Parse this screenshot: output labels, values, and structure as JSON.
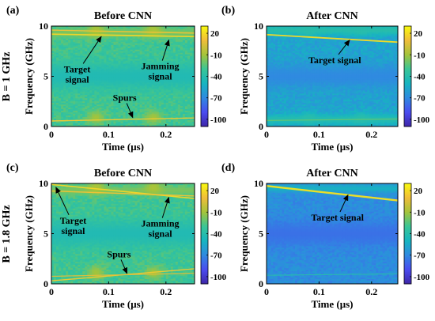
{
  "figure": {
    "row_labels": [
      "B = 1 GHz",
      "B = 1.8 GHz"
    ]
  },
  "colormap": {
    "name": "parula",
    "stops": [
      "#3e26a8",
      "#4a4cf0",
      "#2f8ae0",
      "#17b5c0",
      "#3ac596",
      "#a4c43b",
      "#f0bd3a",
      "#f9fb0e"
    ]
  },
  "chart_data": [
    {
      "type": "heatmap",
      "panel_label": "(a)",
      "title": "Before CNN",
      "xlabel": "Time (μs)",
      "ylabel": "Frequency (GHz)",
      "xlim": [
        0,
        0.25
      ],
      "ylim": [
        0,
        10
      ],
      "xticks": [
        {
          "v": 0,
          "t": "0"
        },
        {
          "v": 0.1,
          "t": "0.1"
        },
        {
          "v": 0.2,
          "t": "0.2"
        }
      ],
      "yticks": [
        {
          "v": 0,
          "t": "0"
        },
        {
          "v": 5,
          "t": "5"
        },
        {
          "v": 10,
          "t": "10"
        }
      ],
      "clim": [
        -110,
        30
      ],
      "colorbar_ticks": [
        {
          "v": 20,
          "t": "20"
        },
        {
          "v": -10,
          "t": "-10"
        },
        {
          "v": -40,
          "t": "-40"
        },
        {
          "v": -70,
          "t": "-70"
        },
        {
          "v": -100,
          "t": "-100"
        }
      ],
      "background_level": -30,
      "noise": 7,
      "bands": [
        {
          "f": 5,
          "w": 1.3,
          "level": -44
        },
        {
          "f": 9.3,
          "w": 0.5,
          "level": -18
        }
      ],
      "jamming_blobs": [
        {
          "t": 0.078,
          "f": 9.6,
          "dt": 0.016,
          "df": 0.7,
          "level": -8
        },
        {
          "t": 0.178,
          "f": 9.6,
          "dt": 0.016,
          "df": 0.7,
          "level": -8
        },
        {
          "t": 0.078,
          "f": 0.9,
          "dt": 0.016,
          "df": 0.7,
          "level": -10
        },
        {
          "t": 0.178,
          "f": 0.9,
          "dt": 0.016,
          "df": 0.7,
          "level": -10
        }
      ],
      "signals": [
        {
          "name": "Target signal",
          "t0": 0,
          "f0": 9.2,
          "t1": 0.25,
          "f1": 8.95,
          "level": 18,
          "width": 0.08
        },
        {
          "name": "Jamming signal",
          "t0": 0,
          "f0": 9.6,
          "t1": 0.25,
          "f1": 9.3,
          "level": 12,
          "width": 0.07
        },
        {
          "name": "Spurs",
          "t0": 0,
          "f0": 0.55,
          "t1": 0.25,
          "f1": 0.85,
          "level": 14,
          "width": 0.07
        }
      ],
      "annotations": [
        {
          "text": [
            "Target",
            "signal"
          ],
          "x": 0.045,
          "y": 5.4,
          "arrow_to": [
            0.087,
            8.95
          ]
        },
        {
          "text": [
            "Jamming",
            "signal"
          ],
          "x": 0.19,
          "y": 5.7,
          "arrow_to": [
            0.205,
            8.6
          ]
        },
        {
          "text": [
            "Spurs"
          ],
          "x": 0.128,
          "y": 2.55,
          "arrow_to": [
            0.142,
            0.9
          ]
        }
      ]
    },
    {
      "type": "heatmap",
      "panel_label": "(b)",
      "title": "After CNN",
      "xlabel": "Time (μs)",
      "ylabel": "Frequency (GHz)",
      "xlim": [
        0,
        0.25
      ],
      "ylim": [
        0,
        10
      ],
      "xticks": [
        {
          "v": 0,
          "t": "0"
        },
        {
          "v": 0.1,
          "t": "0.1"
        },
        {
          "v": 0.2,
          "t": "0.2"
        }
      ],
      "yticks": [
        {
          "v": 0,
          "t": "0"
        },
        {
          "v": 5,
          "t": "5"
        },
        {
          "v": 10,
          "t": "10"
        }
      ],
      "clim": [
        -110,
        30
      ],
      "colorbar_ticks": [
        {
          "v": 20,
          "t": "20"
        },
        {
          "v": -10,
          "t": "-10"
        },
        {
          "v": -40,
          "t": "-40"
        },
        {
          "v": -70,
          "t": "-70"
        },
        {
          "v": -100,
          "t": "-100"
        }
      ],
      "background_level": -58,
      "noise": 7,
      "bands": [
        {
          "f": 5,
          "w": 1.2,
          "level": -70
        },
        {
          "f": 9.6,
          "w": 0.5,
          "level": -40
        },
        {
          "f": 0.7,
          "w": 0.5,
          "level": -42
        }
      ],
      "jamming_blobs": [
        {
          "t": 0.08,
          "f": 9.6,
          "dt": 0.016,
          "df": 0.6,
          "level": -40
        },
        {
          "t": 0.18,
          "f": 9.6,
          "dt": 0.016,
          "df": 0.6,
          "level": -40
        },
        {
          "t": 0.08,
          "f": 0.8,
          "dt": 0.016,
          "df": 0.6,
          "level": -40
        },
        {
          "t": 0.18,
          "f": 0.8,
          "dt": 0.016,
          "df": 0.6,
          "level": -40
        }
      ],
      "signals": [
        {
          "name": "Target signal",
          "t0": 0,
          "f0": 9.15,
          "t1": 0.25,
          "f1": 8.4,
          "level": 20,
          "width": 0.09
        },
        {
          "name": "",
          "t0": 0,
          "f0": 0.6,
          "t1": 0.25,
          "f1": 0.75,
          "level": -22,
          "width": 0.06
        }
      ],
      "annotations": [
        {
          "text": [
            "Target signal"
          ],
          "x": 0.13,
          "y": 6.3,
          "arrow_to": [
            0.158,
            8.6
          ]
        }
      ]
    },
    {
      "type": "heatmap",
      "panel_label": "(c)",
      "title": "Before CNN",
      "xlabel": "Time (μs)",
      "ylabel": "Frequency (GHz)",
      "xlim": [
        0,
        0.25
      ],
      "ylim": [
        0,
        10
      ],
      "xticks": [
        {
          "v": 0,
          "t": "0"
        },
        {
          "v": 0.1,
          "t": "0.1"
        },
        {
          "v": 0.2,
          "t": "0.2"
        }
      ],
      "yticks": [
        {
          "v": 0,
          "t": "0"
        },
        {
          "v": 5,
          "t": "5"
        },
        {
          "v": 10,
          "t": "10"
        }
      ],
      "clim": [
        -110,
        30
      ],
      "colorbar_ticks": [
        {
          "v": 20,
          "t": "20"
        },
        {
          "v": -10,
          "t": "-10"
        },
        {
          "v": -40,
          "t": "-40"
        },
        {
          "v": -70,
          "t": "-70"
        },
        {
          "v": -100,
          "t": "-100"
        }
      ],
      "background_level": -30,
      "noise": 7,
      "bands": [
        {
          "f": 5,
          "w": 1.3,
          "level": -44
        },
        {
          "f": 9.3,
          "w": 0.5,
          "level": -18
        }
      ],
      "jamming_blobs": [
        {
          "t": 0.078,
          "f": 9.6,
          "dt": 0.016,
          "df": 0.7,
          "level": -8
        },
        {
          "t": 0.178,
          "f": 9.6,
          "dt": 0.016,
          "df": 0.7,
          "level": -8
        },
        {
          "t": 0.078,
          "f": 1.1,
          "dt": 0.016,
          "df": 0.7,
          "level": -10
        },
        {
          "t": 0.178,
          "f": 1.1,
          "dt": 0.016,
          "df": 0.7,
          "level": -10
        }
      ],
      "signals": [
        {
          "name": "Target signal",
          "t0": 0,
          "f0": 9.9,
          "t1": 0.25,
          "f1": 8.5,
          "level": 18,
          "width": 0.08
        },
        {
          "name": "Jamming signal",
          "t0": 0,
          "f0": 9.25,
          "t1": 0.25,
          "f1": 8.75,
          "level": 12,
          "width": 0.07
        },
        {
          "name": "Spurs",
          "t0": 0,
          "f0": 0.3,
          "t1": 0.25,
          "f1": 1.5,
          "level": 14,
          "width": 0.07
        },
        {
          "name": "",
          "t0": 0,
          "f0": 0.75,
          "t1": 0.25,
          "f1": 1.05,
          "level": 6,
          "width": 0.06
        }
      ],
      "annotations": [
        {
          "text": [
            "Target",
            "signal"
          ],
          "x": 0.038,
          "y": 6.0,
          "arrow_to": [
            0.008,
            9.6
          ]
        },
        {
          "text": [
            "Jamming",
            "signal"
          ],
          "x": 0.19,
          "y": 5.7,
          "arrow_to": [
            0.205,
            8.6
          ]
        },
        {
          "text": [
            "Spurs"
          ],
          "x": 0.118,
          "y": 2.65,
          "arrow_to": [
            0.132,
            1.05
          ]
        }
      ]
    },
    {
      "type": "heatmap",
      "panel_label": "(d)",
      "title": "After CNN",
      "xlabel": "Time (μs)",
      "ylabel": "Frequency (GHz)",
      "xlim": [
        0,
        0.25
      ],
      "ylim": [
        0,
        10
      ],
      "xticks": [
        {
          "v": 0,
          "t": "0"
        },
        {
          "v": 0.1,
          "t": "0.1"
        },
        {
          "v": 0.2,
          "t": "0.2"
        }
      ],
      "yticks": [
        {
          "v": 0,
          "t": "0"
        },
        {
          "v": 5,
          "t": "5"
        },
        {
          "v": 10,
          "t": "10"
        }
      ],
      "clim": [
        -110,
        30
      ],
      "colorbar_ticks": [
        {
          "v": 20,
          "t": "20"
        },
        {
          "v": -10,
          "t": "-10"
        },
        {
          "v": -40,
          "t": "-40"
        },
        {
          "v": -70,
          "t": "-70"
        },
        {
          "v": -100,
          "t": "-100"
        }
      ],
      "background_level": -68,
      "noise": 6,
      "bands": [
        {
          "f": 5,
          "w": 1.4,
          "level": -78
        },
        {
          "f": 9.5,
          "w": 0.4,
          "level": -52
        }
      ],
      "jamming_blobs": [],
      "signals": [
        {
          "name": "Target signal",
          "t0": 0,
          "f0": 9.75,
          "t1": 0.25,
          "f1": 8.3,
          "level": 22,
          "width": 0.12
        },
        {
          "name": "",
          "t0": 0,
          "f0": 0.85,
          "t1": 0.25,
          "f1": 1.0,
          "level": -40,
          "width": 0.05
        }
      ],
      "annotations": [
        {
          "text": [
            "Target signal"
          ],
          "x": 0.135,
          "y": 6.3,
          "arrow_to": [
            0.155,
            8.85
          ]
        }
      ]
    }
  ]
}
